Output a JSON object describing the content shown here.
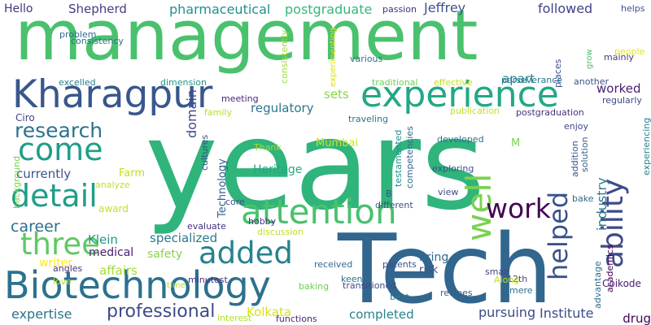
{
  "words": [
    {
      "text": "years",
      "color": "#2fb47c"
    },
    {
      "text": "management",
      "color": "#4ac16d"
    },
    {
      "text": "Tech",
      "color": "#31668e"
    },
    {
      "text": "Kharagpur",
      "color": "#38578c"
    },
    {
      "text": "experience",
      "color": "#22a884"
    },
    {
      "text": "Biotechnology",
      "color": "#2c718e"
    },
    {
      "text": "attention",
      "color": "#4ac16d"
    },
    {
      "text": "ability",
      "color": "#3e4a89"
    },
    {
      "text": "come",
      "color": "#1f9e89"
    },
    {
      "text": "detail",
      "color": "#1f9e89"
    },
    {
      "text": "added",
      "color": "#26828e"
    },
    {
      "text": "three",
      "color": "#5ec962"
    },
    {
      "text": "well",
      "color": "#7ad151"
    },
    {
      "text": "research",
      "color": "#2c728e"
    },
    {
      "text": "work",
      "color": "#440154"
    },
    {
      "text": "helped",
      "color": "#3b528b"
    },
    {
      "text": "professional",
      "color": "#3e4a89"
    },
    {
      "text": "career",
      "color": "#2d708e"
    },
    {
      "text": "Hello",
      "color": "#46327e"
    },
    {
      "text": "Shepherd",
      "color": "#433e85"
    },
    {
      "text": "pharmaceutical",
      "color": "#21918c"
    },
    {
      "text": "postgraduate",
      "color": "#35b779"
    },
    {
      "text": "Jeffrey",
      "color": "#3b528b"
    },
    {
      "text": "passion",
      "color": "#472d7b"
    },
    {
      "text": "followed",
      "color": "#414487"
    },
    {
      "text": "domain",
      "color": "#3e4989"
    },
    {
      "text": "apart",
      "color": "#26828e"
    },
    {
      "text": "worked",
      "color": "#482071"
    },
    {
      "text": "regularly",
      "color": "#3e4a89"
    },
    {
      "text": "regulatory",
      "color": "#2a768e"
    },
    {
      "text": "sets",
      "color": "#86d549"
    },
    {
      "text": "industry",
      "color": "#2a788e"
    },
    {
      "text": "consistently",
      "color": "#9bd93c"
    },
    {
      "text": "consistency",
      "color": "#2c728e"
    },
    {
      "text": "problem",
      "color": "#31688e"
    },
    {
      "text": "excelled",
      "color": "#277f8e"
    },
    {
      "text": "dimension",
      "color": "#1f958b"
    },
    {
      "text": "meeting",
      "color": "#482878"
    },
    {
      "text": "experimenting",
      "color": "#d8e219"
    },
    {
      "text": "traditional",
      "color": "#6ece58"
    },
    {
      "text": "effective",
      "color": "#c2df23"
    },
    {
      "text": "perseverance",
      "color": "#2a788e"
    },
    {
      "text": "another",
      "color": "#3b528b"
    },
    {
      "text": "various",
      "color": "#2c718e"
    },
    {
      "text": "mainly",
      "color": "#443983"
    },
    {
      "text": "people",
      "color": "#e5e419"
    },
    {
      "text": "helps",
      "color": "#3b528b"
    },
    {
      "text": "grow",
      "color": "#4ac16d"
    },
    {
      "text": "places",
      "color": "#3b528b"
    },
    {
      "text": "Ciro",
      "color": "#414487"
    },
    {
      "text": "writer",
      "color": "#fde725"
    },
    {
      "text": "Technology",
      "color": "#355f8d"
    },
    {
      "text": "cultures",
      "color": "#3b528b"
    },
    {
      "text": "family",
      "color": "#b5de2b"
    },
    {
      "text": "Thank",
      "color": "#a5db36"
    },
    {
      "text": "traveling",
      "color": "#2c728e"
    },
    {
      "text": "publication",
      "color": "#c8e020"
    },
    {
      "text": "postgraduation",
      "color": "#46307e"
    },
    {
      "text": "enjoy",
      "color": "#3e4a89"
    },
    {
      "text": "Mumbai",
      "color": "#d0e11c"
    },
    {
      "text": "Heritage",
      "color": "#22a884"
    },
    {
      "text": "testamented",
      "color": "#21918c"
    },
    {
      "text": "competencies",
      "color": "#31688e"
    },
    {
      "text": "developed",
      "color": "#2c728e"
    },
    {
      "text": "exploring",
      "color": "#3b528b"
    },
    {
      "text": "M",
      "color": "#7ad151"
    },
    {
      "text": "solution",
      "color": "#355f8d"
    },
    {
      "text": "addition",
      "color": "#3b528b"
    },
    {
      "text": "bake",
      "color": "#31688e"
    },
    {
      "text": "view",
      "color": "#3e4a89"
    },
    {
      "text": "different",
      "color": "#3b528b"
    },
    {
      "text": "B",
      "color": "#3b528b"
    },
    {
      "text": "academics",
      "color": "#440154"
    },
    {
      "text": "advantage",
      "color": "#2d708e"
    },
    {
      "text": "experiencing",
      "color": "#26828e"
    },
    {
      "text": "Coikode",
      "color": "#482071"
    },
    {
      "text": "12th",
      "color": "#3e4989"
    },
    {
      "text": "mere",
      "color": "#2c718e"
    },
    {
      "text": "small",
      "color": "#414487"
    },
    {
      "text": "recipes",
      "color": "#38588c"
    },
    {
      "text": "best",
      "color": "#2a788e"
    },
    {
      "text": "keen",
      "color": "#2c728e"
    },
    {
      "text": "received",
      "color": "#31688e"
    },
    {
      "text": "patents",
      "color": "#3b528b"
    },
    {
      "text": "transitioned",
      "color": "#3e4a89"
    },
    {
      "text": "baking",
      "color": "#6ece58"
    },
    {
      "text": "bring",
      "color": "#31688e"
    },
    {
      "text": "risk",
      "color": "#3b528b"
    },
    {
      "text": "Along",
      "color": "#c2df23"
    },
    {
      "text": "drug",
      "color": "#440154"
    },
    {
      "text": "Institute",
      "color": "#3e4a89"
    },
    {
      "text": "pursuing",
      "color": "#3e4a89"
    },
    {
      "text": "completed",
      "color": "#26828e"
    },
    {
      "text": "Kolkata",
      "color": "#d8e219"
    },
    {
      "text": "interest",
      "color": "#b5de2b"
    },
    {
      "text": "functions",
      "color": "#482878"
    },
    {
      "text": "minutest",
      "color": "#46327e"
    },
    {
      "text": "discussion",
      "color": "#bddf26"
    },
    {
      "text": "time",
      "color": "#b5de2b"
    },
    {
      "text": "affairs",
      "color": "#a5db36"
    },
    {
      "text": "safety",
      "color": "#86d549"
    },
    {
      "text": "specialized",
      "color": "#2a788e"
    },
    {
      "text": "medical",
      "color": "#482071"
    },
    {
      "text": "Klein",
      "color": "#1f958b"
    },
    {
      "text": "Farm",
      "color": "#c2df23"
    },
    {
      "text": "currently",
      "color": "#3b528b"
    },
    {
      "text": "expertise",
      "color": "#2c728e"
    },
    {
      "text": "angles",
      "color": "#46327e"
    },
    {
      "text": "love",
      "color": "#b5de2b"
    },
    {
      "text": "award",
      "color": "#c8e020"
    },
    {
      "text": "analyze",
      "color": "#c2df23"
    },
    {
      "text": "background",
      "color": "#7ad151"
    },
    {
      "text": "evaluate",
      "color": "#46327e"
    },
    {
      "text": "core",
      "color": "#3b528b"
    },
    {
      "text": "hobby",
      "color": "#46327e"
    }
  ]
}
